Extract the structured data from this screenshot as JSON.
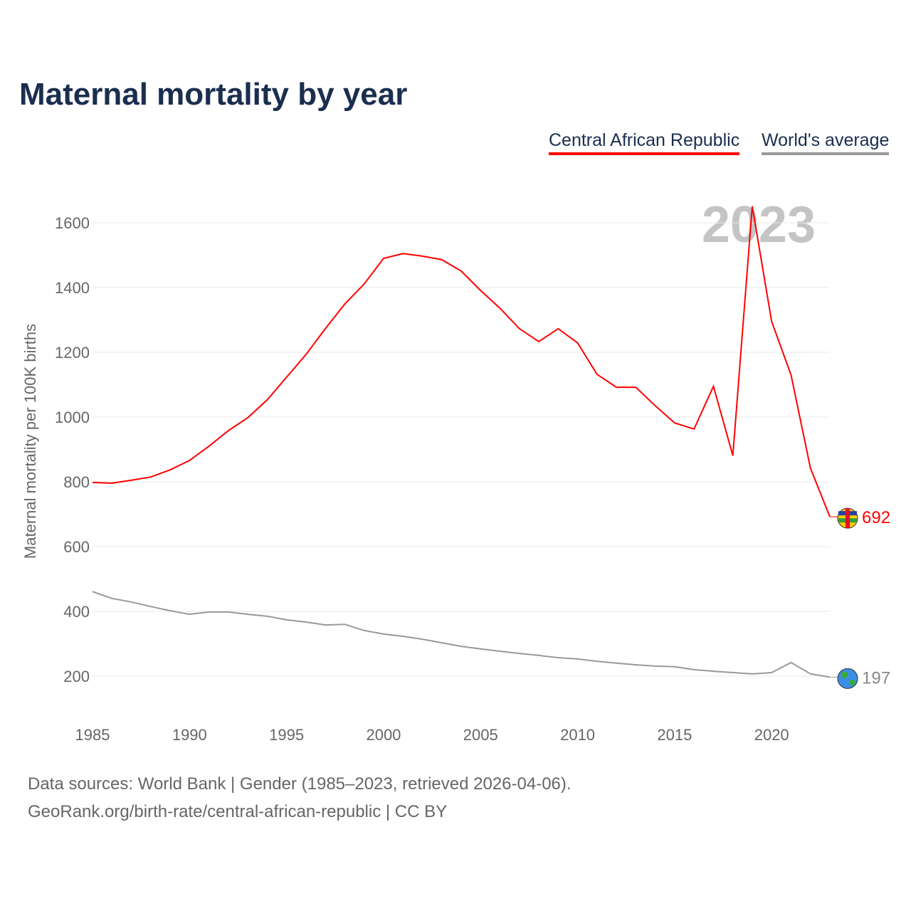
{
  "chart_data": {
    "type": "line",
    "title": "Maternal mortality by year",
    "xlabel": "",
    "ylabel": "Maternal mortality per 100K births",
    "xlim": [
      1985,
      2023
    ],
    "ylim": [
      100,
      1700
    ],
    "grid": true,
    "legend_position": "top-right",
    "year_watermark": "2023",
    "x_ticks": [
      "1985",
      "1990",
      "1995",
      "2000",
      "2005",
      "2010",
      "2015",
      "2020"
    ],
    "y_ticks": [
      "200",
      "400",
      "600",
      "800",
      "1000",
      "1200",
      "1400",
      "1600"
    ],
    "x": [
      1985,
      1986,
      1987,
      1988,
      1989,
      1990,
      1991,
      1992,
      1993,
      1994,
      1995,
      1996,
      1997,
      1998,
      1999,
      2000,
      2001,
      2002,
      2003,
      2004,
      2005,
      2006,
      2007,
      2008,
      2009,
      2010,
      2011,
      2012,
      2013,
      2014,
      2015,
      2016,
      2017,
      2018,
      2019,
      2020,
      2021,
      2022,
      2023
    ],
    "series": [
      {
        "name": "Central African Republic",
        "color": "#ff0000",
        "end_label": "692",
        "values": [
          798,
          796,
          805,
          815,
          837,
          866,
          910,
          958,
          998,
          1053,
          1123,
          1193,
          1273,
          1349,
          1411,
          1490,
          1505,
          1497,
          1486,
          1451,
          1391,
          1336,
          1273,
          1233,
          1273,
          1229,
          1132,
          1092,
          1092,
          1035,
          982,
          963,
          1095,
          881,
          1651,
          1295,
          1130,
          842,
          692
        ]
      },
      {
        "name": "World's average",
        "color": "#999999",
        "end_label": "197",
        "values": [
          461,
          440,
          429,
          415,
          402,
          391,
          398,
          398,
          391,
          385,
          374,
          367,
          358,
          360,
          341,
          330,
          323,
          314,
          303,
          292,
          284,
          277,
          270,
          264,
          257,
          253,
          246,
          240,
          235,
          231,
          229,
          220,
          215,
          211,
          207,
          211,
          242,
          207,
          197
        ]
      }
    ]
  },
  "footer": {
    "line1": "Data sources: World Bank | Gender (1985–2023, retrieved 2026-04-06).",
    "line2": "GeoRank.org/birth-rate/central-african-republic | CC BY"
  }
}
